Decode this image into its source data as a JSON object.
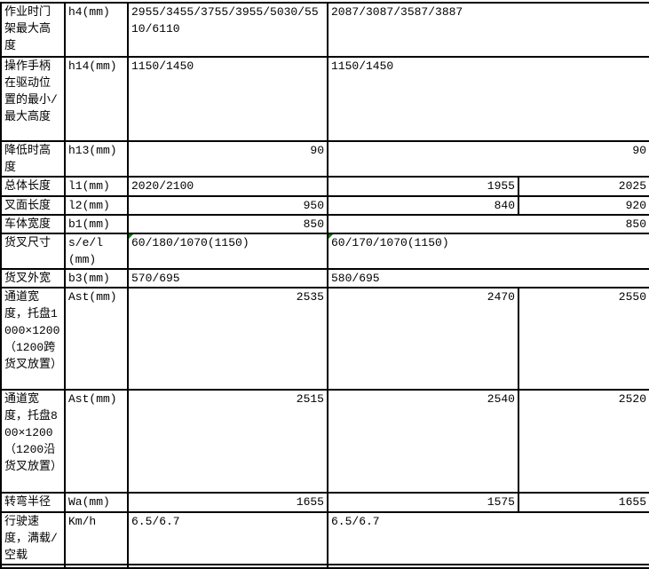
{
  "app": {
    "type": "spreadsheet-specification-table",
    "language": "zh-CN"
  },
  "colors": {
    "border": "#000000",
    "background": "#ffffff",
    "error_flag_green": "#008000",
    "text": "#000000"
  },
  "icons": {
    "error_flag": "green-triangle-top-left-corner"
  },
  "table": {
    "columns": [
      "spec-name",
      "parameter-code",
      "model-1-value",
      "model-2-value",
      "model-3-value"
    ],
    "rows": [
      {
        "label": "作业时门架最大高度",
        "code": "h4(mm)",
        "values": [
          {
            "text": "2955/3455/3755/3955/5030/5510/6110",
            "span": 1,
            "align": "left",
            "flag": false
          },
          {
            "text": "2087/3087/3587/3887",
            "span": 2,
            "align": "left",
            "flag": false
          }
        ]
      },
      {
        "label": "操作手柄在驱动位置的最小/最大高度",
        "code": "h14(mm)",
        "values": [
          {
            "text": "1150/1450",
            "span": 1,
            "align": "left",
            "flag": false
          },
          {
            "text": "1150/1450",
            "span": 2,
            "align": "left",
            "flag": false
          }
        ]
      },
      {
        "label": "降低时高度",
        "code": "h13(mm)",
        "values": [
          {
            "text": "90",
            "span": 1,
            "align": "right",
            "flag": false
          },
          {
            "text": "90",
            "span": 2,
            "align": "right",
            "flag": false
          }
        ]
      },
      {
        "label": "总体长度",
        "code": "l1(mm)",
        "values": [
          {
            "text": "2020/2100",
            "span": 1,
            "align": "left",
            "flag": false
          },
          {
            "text": "1955",
            "span": 1,
            "align": "right",
            "flag": false
          },
          {
            "text": "2025",
            "span": 1,
            "align": "right",
            "flag": false
          }
        ]
      },
      {
        "label": "叉面长度",
        "code": "l2(mm)",
        "values": [
          {
            "text": "950",
            "span": 1,
            "align": "right",
            "flag": false
          },
          {
            "text": "840",
            "span": 1,
            "align": "right",
            "flag": false
          },
          {
            "text": "920",
            "span": 1,
            "align": "right",
            "flag": false
          }
        ]
      },
      {
        "label": "车体宽度",
        "code": "b1(mm)",
        "values": [
          {
            "text": "850",
            "span": 1,
            "align": "right",
            "flag": false
          },
          {
            "text": "850",
            "span": 2,
            "align": "right",
            "flag": false
          }
        ]
      },
      {
        "label": "货叉尺寸",
        "code": "s/e/l (mm)",
        "values": [
          {
            "text": "60/180/1070(1150)",
            "span": 1,
            "align": "left",
            "flag": true
          },
          {
            "text": "60/170/1070(1150)",
            "span": 2,
            "align": "left",
            "flag": true
          }
        ]
      },
      {
        "label": "货叉外宽",
        "code": "b3(mm)",
        "values": [
          {
            "text": "570/695",
            "span": 1,
            "align": "left",
            "flag": false
          },
          {
            "text": "580/695",
            "span": 2,
            "align": "left",
            "flag": false
          }
        ]
      },
      {
        "label": "通道宽度，托盘1000×1200（1200跨货叉放置）",
        "code": "Ast(mm)",
        "values": [
          {
            "text": "2535",
            "span": 1,
            "align": "right",
            "flag": false
          },
          {
            "text": "2470",
            "span": 1,
            "align": "right",
            "flag": false
          },
          {
            "text": "2550",
            "span": 1,
            "align": "right",
            "flag": false
          }
        ]
      },
      {
        "label": "通道宽度，托盘800×1200（1200沿货叉放置）",
        "code": "Ast(mm)",
        "values": [
          {
            "text": "2515",
            "span": 1,
            "align": "right",
            "flag": false
          },
          {
            "text": "2540",
            "span": 1,
            "align": "right",
            "flag": false
          },
          {
            "text": "2520",
            "span": 1,
            "align": "right",
            "flag": false
          }
        ]
      },
      {
        "label": "转弯半径",
        "code": "Wa(mm)",
        "values": [
          {
            "text": "1655",
            "span": 1,
            "align": "right",
            "flag": false
          },
          {
            "text": "1575",
            "span": 1,
            "align": "right",
            "flag": false
          },
          {
            "text": "1655",
            "span": 1,
            "align": "right",
            "flag": false
          }
        ]
      },
      {
        "label": "行驶速度，满载/空载",
        "code": "Km/h",
        "values": [
          {
            "text": "6.5/6.7",
            "span": 1,
            "align": "left",
            "flag": false
          },
          {
            "text": "6.5/6.7",
            "span": 2,
            "align": "left",
            "flag": false
          }
        ]
      },
      {
        "label": "",
        "code": "",
        "values": [
          {
            "text": "",
            "span": 1,
            "align": "left",
            "flag": false
          },
          {
            "text": "",
            "span": 2,
            "align": "left",
            "flag": false
          }
        ]
      }
    ]
  }
}
